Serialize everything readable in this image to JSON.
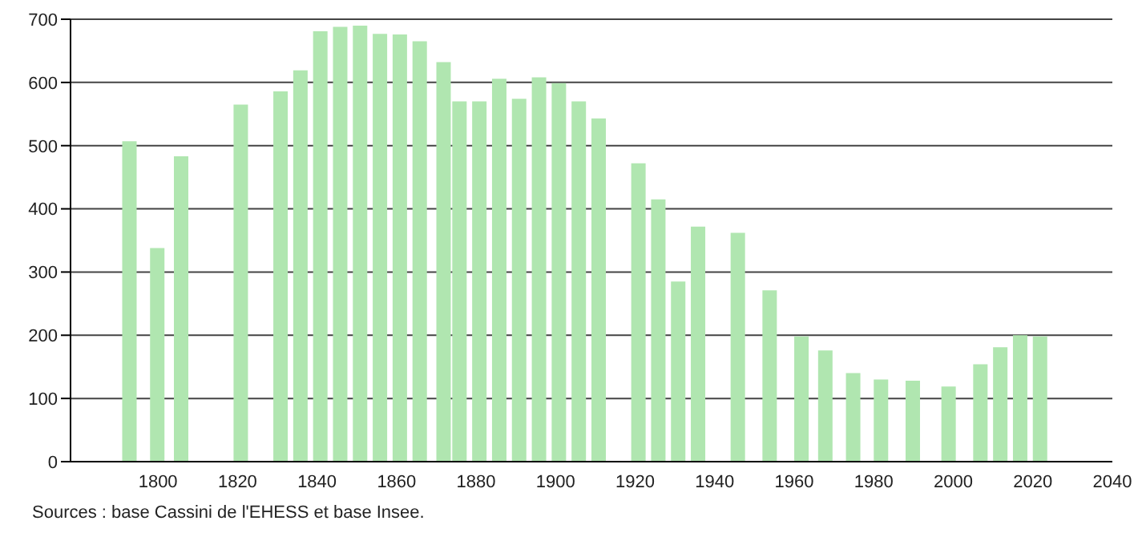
{
  "chart_data": {
    "type": "bar",
    "x": [
      1793,
      1800,
      1806,
      1821,
      1831,
      1836,
      1841,
      1846,
      1851,
      1856,
      1861,
      1866,
      1872,
      1876,
      1881,
      1886,
      1891,
      1896,
      1901,
      1906,
      1911,
      1921,
      1926,
      1931,
      1936,
      1946,
      1954,
      1962,
      1968,
      1975,
      1982,
      1990,
      1999,
      2007,
      2012,
      2017,
      2022
    ],
    "values": [
      507,
      338,
      483,
      565,
      586,
      619,
      681,
      688,
      690,
      677,
      676,
      665,
      632,
      570,
      570,
      606,
      574,
      608,
      599,
      570,
      543,
      472,
      415,
      285,
      372,
      362,
      271,
      198,
      176,
      140,
      130,
      128,
      119,
      154,
      181,
      200,
      198
    ],
    "color": "#b0e6b0",
    "xlim": [
      1778,
      2040
    ],
    "xticks": [
      1800,
      1820,
      1840,
      1860,
      1880,
      1900,
      1920,
      1940,
      1960,
      1980,
      2000,
      2020,
      2040
    ],
    "ylim": [
      0,
      700
    ],
    "yticks": [
      0,
      100,
      200,
      300,
      400,
      500,
      600,
      700
    ],
    "grid": "y",
    "annotations": [
      "Sources : base Cassini de l'EHESS et base Insee."
    ]
  }
}
